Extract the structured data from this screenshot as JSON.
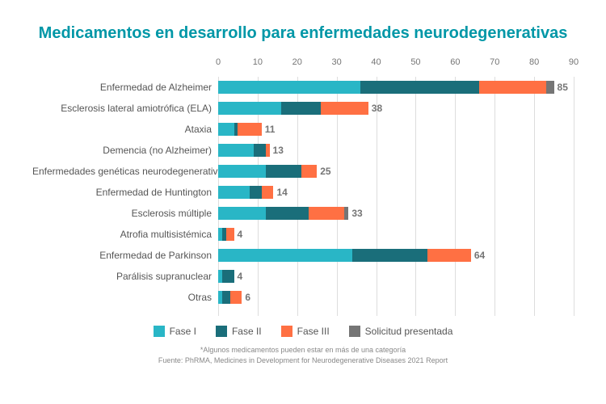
{
  "title": "Medicamentos en desarrollo para enfermedades neurodegenerativas",
  "title_color": "#0097a7",
  "title_fontsize": 20,
  "colors": {
    "phase1": "#29b6c6",
    "phase2": "#1a6e7a",
    "phase3": "#ff7043",
    "submitted": "#757575",
    "grid": "#dddddd",
    "axis_text": "#757575",
    "cat_text": "#555555",
    "total_text": "#757575",
    "footnote_text": "#888888"
  },
  "axis": {
    "min": 0,
    "max": 90,
    "ticks": [
      0,
      10,
      20,
      30,
      40,
      50,
      60,
      70,
      80,
      90
    ]
  },
  "categories": [
    {
      "label": "Enfermedad de Alzheimer",
      "segments": [
        36,
        30,
        17,
        2
      ],
      "total": 85
    },
    {
      "label": "Esclerosis lateral amiotrófica (ELA)",
      "segments": [
        16,
        10,
        12,
        0
      ],
      "total": 38
    },
    {
      "label": "Ataxia",
      "segments": [
        4,
        1,
        6,
        0
      ],
      "total": 11
    },
    {
      "label": "Demencia (no Alzheimer)",
      "segments": [
        9,
        3,
        1,
        0
      ],
      "total": 13
    },
    {
      "label": "Enfermedades genéticas neurodegenerativas",
      "segments": [
        12,
        9,
        4,
        0
      ],
      "total": 25
    },
    {
      "label": "Enfermedad de Huntington",
      "segments": [
        8,
        3,
        3,
        0
      ],
      "total": 14
    },
    {
      "label": "Esclerosis múltiple",
      "segments": [
        12,
        11,
        9,
        1
      ],
      "total": 33
    },
    {
      "label": "Atrofia multisistémica",
      "segments": [
        1,
        1,
        2,
        0
      ],
      "total": 4
    },
    {
      "label": "Enfermedad de Parkinson",
      "segments": [
        34,
        19,
        11,
        0
      ],
      "total": 64
    },
    {
      "label": "Parálisis supranuclear",
      "segments": [
        1,
        3,
        0,
        0
      ],
      "total": 4
    },
    {
      "label": "Otras",
      "segments": [
        1,
        2,
        3,
        0
      ],
      "total": 6
    }
  ],
  "legend": [
    {
      "key": "phase1",
      "label": "Fase I"
    },
    {
      "key": "phase2",
      "label": "Fase II"
    },
    {
      "key": "phase3",
      "label": "Fase III"
    },
    {
      "key": "submitted",
      "label": "Solicitud presentada"
    }
  ],
  "footnote1": "*Algunos medicamentos pueden estar en más de una categoría",
  "footnote2": "Fuente: PhRMA, Medicines in Development for Neurodegenerative Diseases 2021 Report"
}
